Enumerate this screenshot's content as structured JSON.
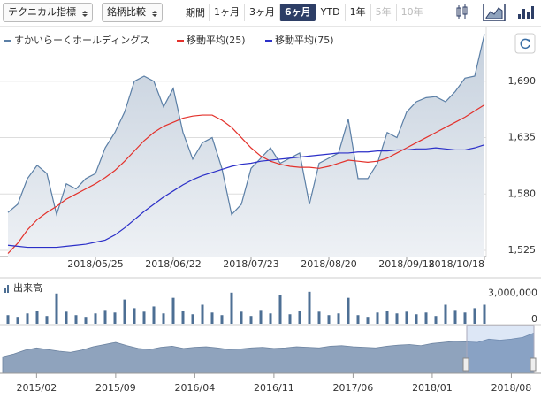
{
  "toolbar": {
    "indicator_menu": "テクニカル指標",
    "compare_menu": "銘柄比較",
    "period_label": "期間",
    "periods": [
      {
        "label": "1ヶ月"
      },
      {
        "label": "3ヶ月"
      },
      {
        "label": "6ヶ月",
        "selected": true
      },
      {
        "label": "YTD"
      },
      {
        "label": "1年"
      },
      {
        "label": "5年",
        "disabled": true
      },
      {
        "label": "10年",
        "disabled": true
      }
    ]
  },
  "chart_data": [
    {
      "type": "line",
      "grid": true,
      "categories": [
        null,
        null,
        null,
        null,
        null,
        null,
        null,
        null,
        null,
        "2018/05/25",
        null,
        null,
        null,
        null,
        null,
        null,
        null,
        "2018/06/22",
        null,
        null,
        null,
        null,
        null,
        null,
        null,
        "2018/07/23",
        null,
        null,
        null,
        null,
        null,
        null,
        null,
        "2018/08/20",
        null,
        null,
        null,
        null,
        null,
        null,
        null,
        "2018/09/18",
        null,
        null,
        null,
        null,
        null,
        null,
        null,
        "2018/10/18"
      ],
      "ylim": [
        1519,
        1739
      ],
      "yticks": [
        {
          "value": 1525,
          "label": "1,525"
        },
        {
          "value": 1580,
          "label": "1,580"
        },
        {
          "value": 1635,
          "label": "1,635"
        },
        {
          "value": 1690,
          "label": "1,690"
        }
      ],
      "series": [
        {
          "name": "すかいらーくホールディングス",
          "color": "#5b7fa6",
          "area": true,
          "values": [
            1562,
            1570,
            1595,
            1608,
            1600,
            1560,
            1590,
            1585,
            1595,
            1600,
            1625,
            1640,
            1660,
            1690,
            1695,
            1690,
            1665,
            1683,
            1640,
            1614,
            1630,
            1635,
            1605,
            1560,
            1570,
            1605,
            1615,
            1625,
            1610,
            1615,
            1620,
            1570,
            1610,
            1615,
            1620,
            1653,
            1595,
            1595,
            1610,
            1640,
            1635,
            1660,
            1670,
            1674,
            1675,
            1670,
            1680,
            1693,
            1695,
            1736
          ]
        },
        {
          "name": "移動平均(25)",
          "color": "#e3312b",
          "values": [
            1522,
            1532,
            1545,
            1555,
            1562,
            1568,
            1575,
            1580,
            1585,
            1590,
            1596,
            1603,
            1612,
            1622,
            1632,
            1640,
            1646,
            1650,
            1654,
            1656,
            1657,
            1657,
            1652,
            1645,
            1635,
            1625,
            1617,
            1612,
            1609,
            1607,
            1606,
            1606,
            1605,
            1607,
            1610,
            1613,
            1612,
            1611,
            1612,
            1615,
            1620,
            1625,
            1630,
            1635,
            1640,
            1645,
            1650,
            1655,
            1661,
            1667
          ]
        },
        {
          "name": "移動平均(75)",
          "color": "#2b2fc8",
          "values": [
            1530,
            1529,
            1528,
            1528,
            1528,
            1528,
            1529,
            1530,
            1531,
            1533,
            1535,
            1540,
            1547,
            1555,
            1563,
            1570,
            1577,
            1583,
            1589,
            1594,
            1598,
            1601,
            1604,
            1607,
            1609,
            1610,
            1612,
            1613,
            1614,
            1615,
            1616,
            1617,
            1618,
            1619,
            1620,
            1620,
            1621,
            1621,
            1622,
            1622,
            1623,
            1623,
            1624,
            1624,
            1625,
            1624,
            1623,
            1623,
            1625,
            1628
          ]
        }
      ]
    },
    {
      "type": "bar",
      "title": "出来高",
      "color": "#4d6f94",
      "ylim": [
        0,
        4500000
      ],
      "yticks": [
        0,
        {
          "value": 3000000,
          "label": "3,000,000"
        }
      ],
      "values": [
        1000000,
        800000,
        1200000,
        1500000,
        900000,
        3500000,
        1400000,
        1000000,
        800000,
        1200000,
        1600000,
        1300000,
        2800000,
        1800000,
        1400000,
        2000000,
        1200000,
        3000000,
        1500000,
        1100000,
        2200000,
        1300000,
        1000000,
        3600000,
        1400000,
        900000,
        1600000,
        1200000,
        3300000,
        1100000,
        1500000,
        3700000,
        1400000,
        1000000,
        1200000,
        3000000,
        1000000,
        800000,
        1300000,
        1500000,
        1200000,
        1400000,
        1100000,
        1300000,
        900000,
        2200000,
        1600000,
        1300000,
        1800000,
        2200000
      ]
    },
    {
      "type": "area",
      "color": "#8fa3bd",
      "ylim": [
        1000,
        1800
      ],
      "categories": [
        null,
        null,
        null,
        "2015/02",
        null,
        null,
        null,
        null,
        null,
        null,
        "2015/09",
        null,
        null,
        null,
        null,
        null,
        null,
        "2016/04",
        null,
        null,
        null,
        null,
        null,
        null,
        "2016/11",
        null,
        null,
        null,
        null,
        null,
        null,
        "2017/06",
        null,
        null,
        null,
        null,
        null,
        null,
        "2018/01",
        null,
        null,
        null,
        null,
        null,
        null,
        "2018/08",
        null,
        null
      ],
      "values": [
        1300,
        1350,
        1420,
        1460,
        1430,
        1400,
        1380,
        1420,
        1480,
        1520,
        1560,
        1500,
        1450,
        1430,
        1470,
        1490,
        1450,
        1470,
        1480,
        1460,
        1430,
        1440,
        1460,
        1470,
        1450,
        1460,
        1480,
        1470,
        1460,
        1490,
        1500,
        1480,
        1470,
        1460,
        1490,
        1510,
        1520,
        1500,
        1540,
        1560,
        1580,
        1570,
        1560,
        1620,
        1600,
        1620,
        1650,
        1730
      ]
    }
  ]
}
